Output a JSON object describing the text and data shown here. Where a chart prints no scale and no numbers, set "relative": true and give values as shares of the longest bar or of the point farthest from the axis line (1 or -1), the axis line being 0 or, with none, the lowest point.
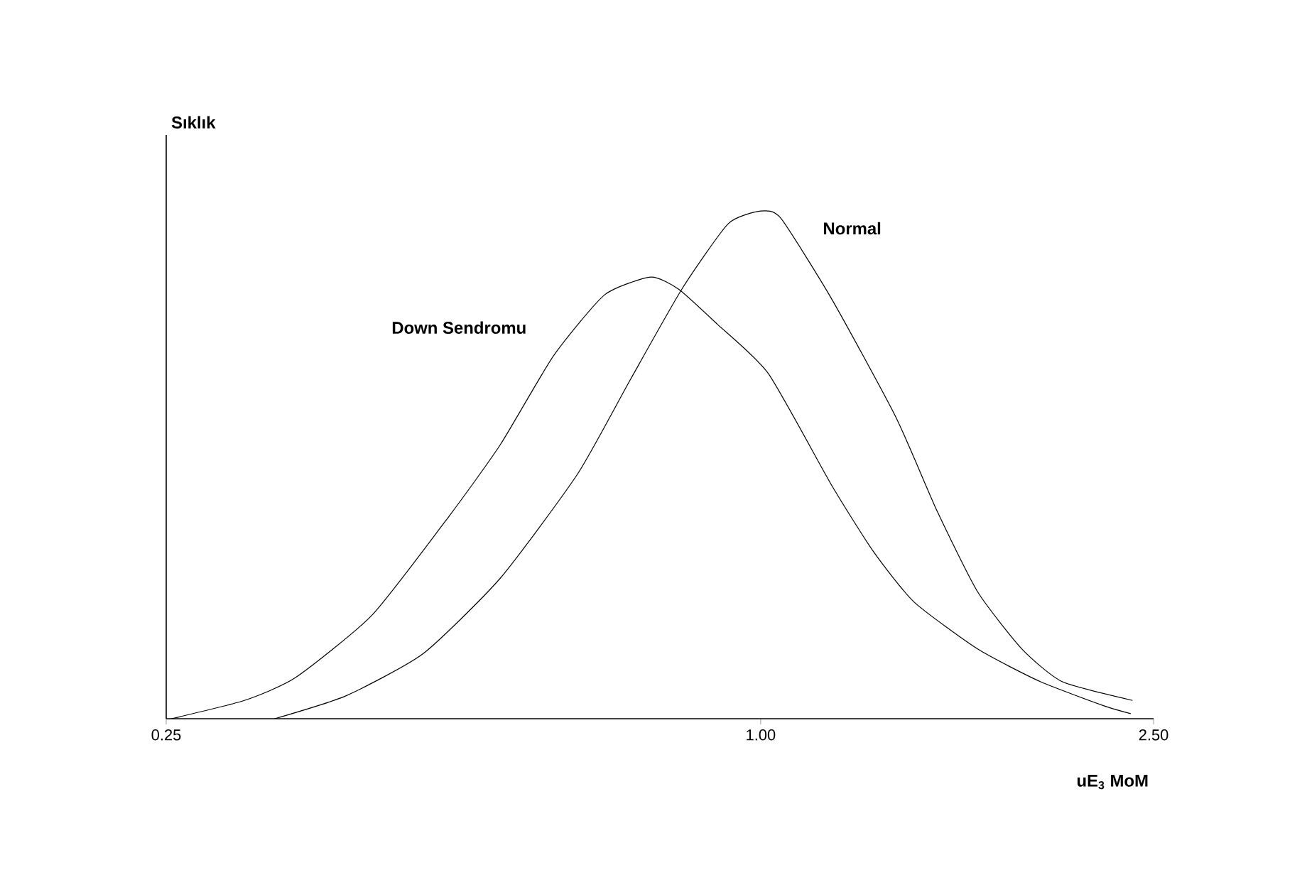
{
  "chart_data": {
    "type": "line",
    "relative": true,
    "ylabel": "Sıklık",
    "xlabel": "uE$_{3}$ MoM",
    "log": "x",
    "xlim": [
      0.25,
      2.5
    ],
    "xticks": [
      0.25,
      {
        "value": 1.0,
        "label": "1.00"
      },
      {
        "value": 2.5,
        "label": "2.50"
      }
    ],
    "marker": "none",
    "line_style": "solid",
    "grid": false,
    "legend": false,
    "series": [
      {
        "name": "Down Sendromu",
        "color": "#000000",
        "x": [
          0.253,
          0.3,
          0.338,
          0.404,
          0.484,
          0.545,
          0.617,
          0.695,
          0.774,
          0.826,
          0.904,
          1.018,
          1.18,
          1.3,
          1.43,
          1.66,
          1.92,
          2.23,
          2.37
        ],
        "values": [
          0,
          0.036,
          0.081,
          0.204,
          0.4,
          0.54,
          0.715,
          0.835,
          0.87,
          0.846,
          0.777,
          0.68,
          0.46,
          0.33,
          0.23,
          0.137,
          0.073,
          0.025,
          0.01
        ]
      },
      {
        "name": "Normal",
        "color": "#000000",
        "x": [
          0.322,
          0.38,
          0.455,
          0.545,
          0.653,
          0.738,
          0.832,
          0.927,
          1.0,
          1.048,
          1.18,
          1.37,
          1.51,
          1.66,
          1.84,
          2.02,
          2.38
        ],
        "values": [
          0,
          0.045,
          0.128,
          0.277,
          0.483,
          0.668,
          0.846,
          0.975,
          1,
          0.986,
          0.827,
          0.595,
          0.408,
          0.249,
          0.137,
          0.073,
          0.036
        ]
      }
    ]
  }
}
